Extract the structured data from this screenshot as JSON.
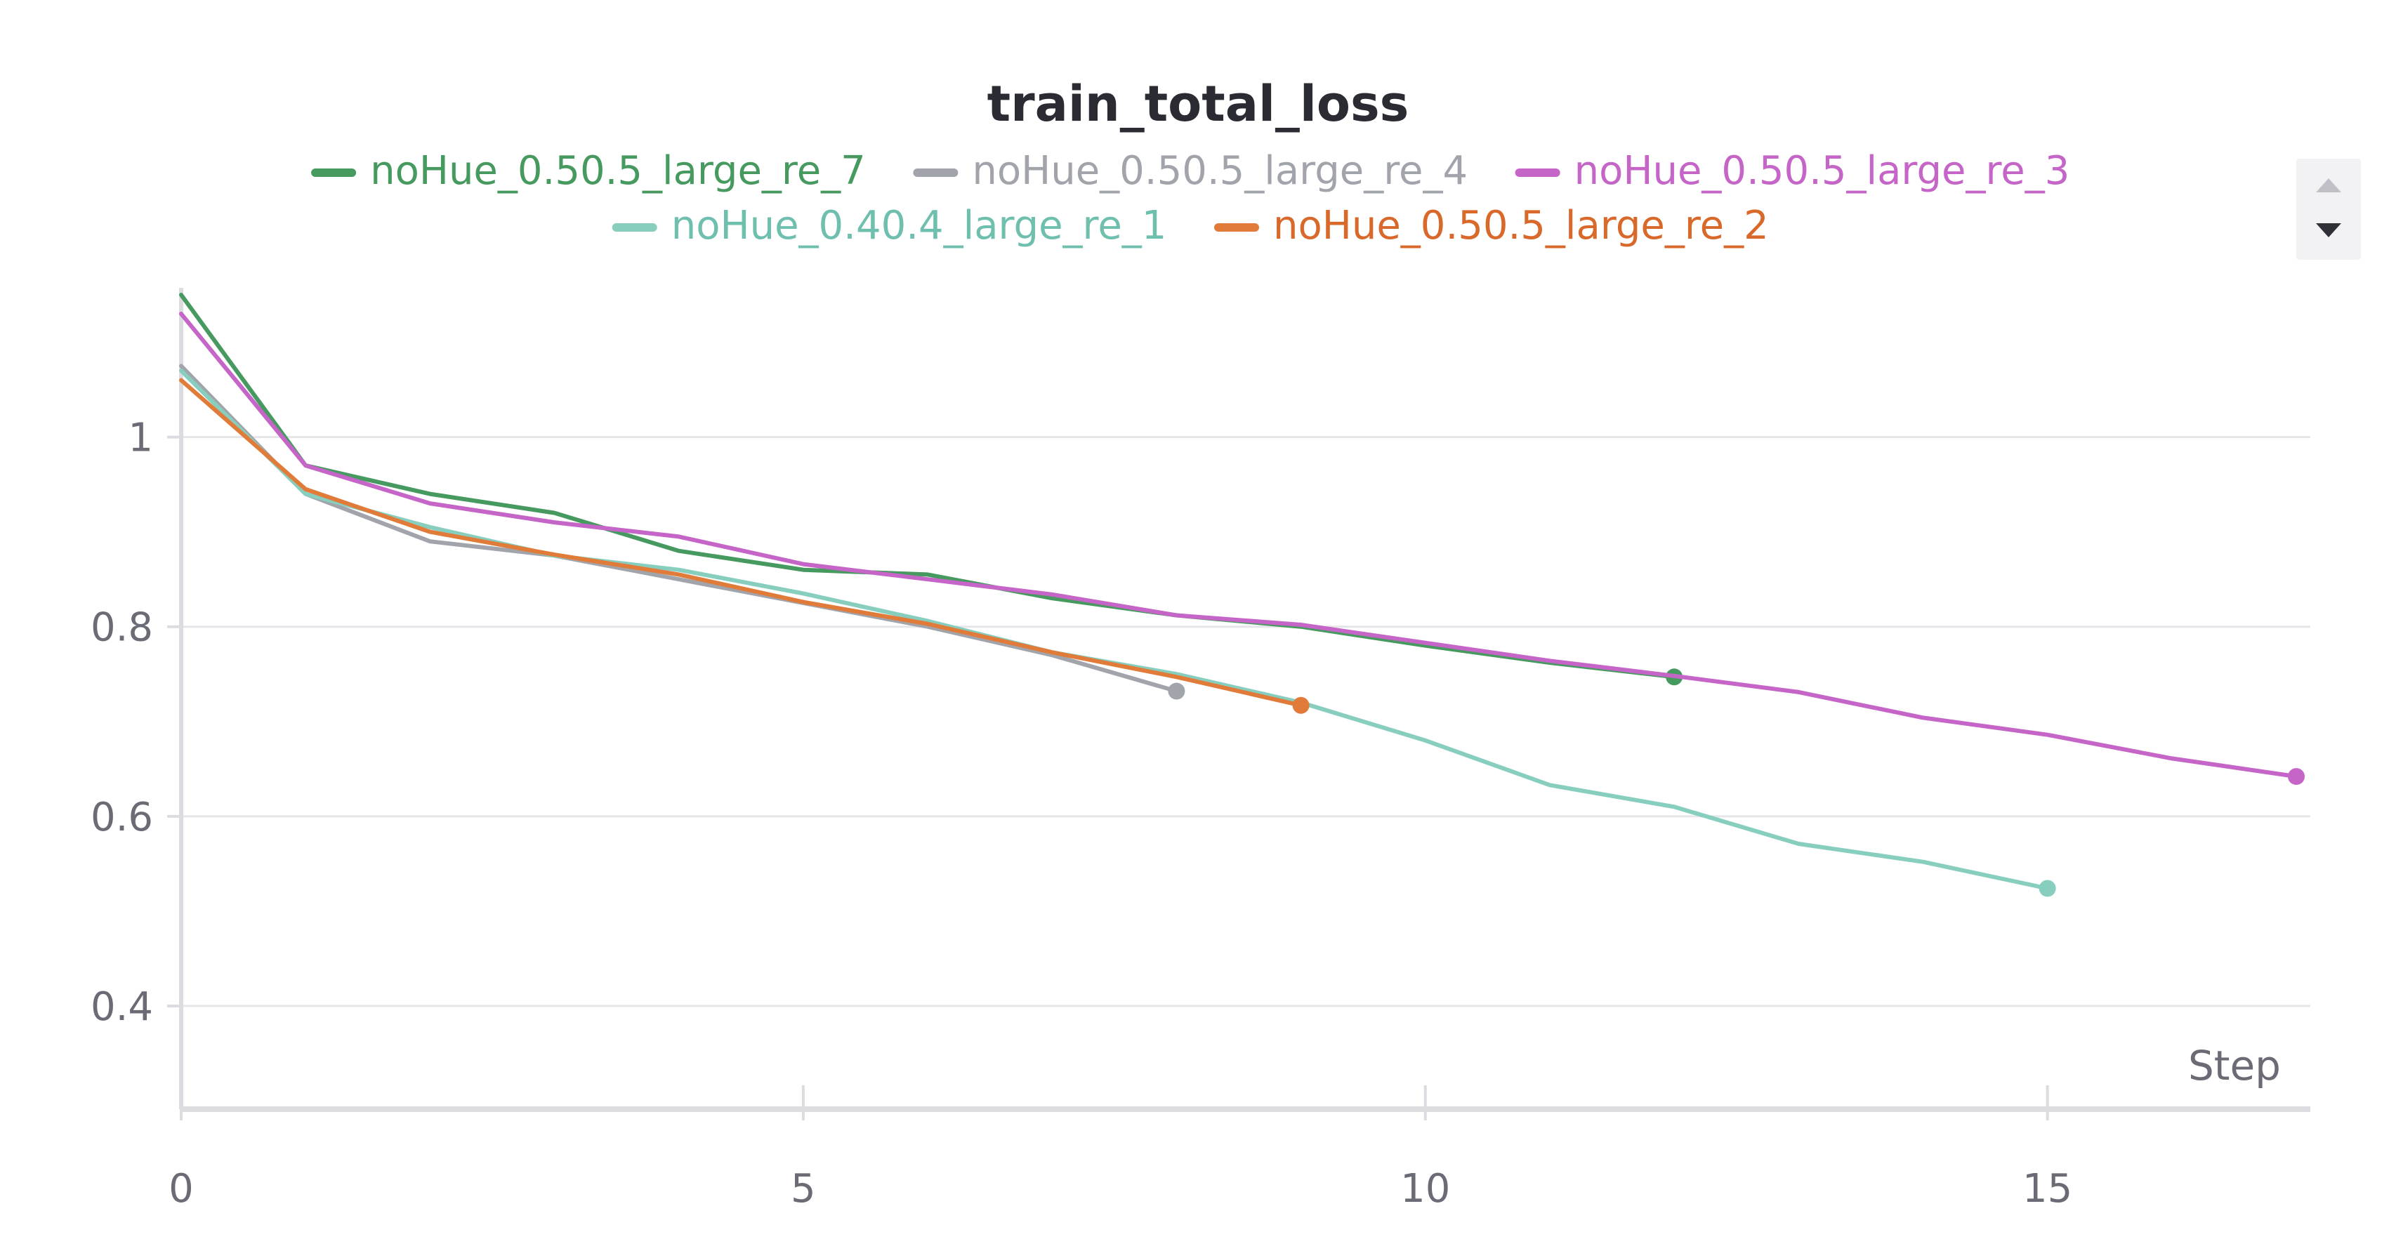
{
  "chart_data": {
    "type": "line",
    "title": "train_total_loss",
    "xlabel": "Step",
    "ylabel": "",
    "xlim": [
      0,
      17
    ],
    "ylim": [
      0.3,
      1.15
    ],
    "x_ticks": [
      0,
      5,
      10,
      15
    ],
    "y_ticks": [
      0.4,
      0.6,
      0.8,
      1
    ],
    "y_tick_labels": [
      "0.4",
      "0.6",
      "0.8",
      "1"
    ],
    "grid": true,
    "legend_position": "top-center",
    "series": [
      {
        "name": "noHue_0.50.5_large_re_7",
        "color": "#479a5f",
        "x": [
          0,
          1,
          2,
          3,
          4,
          5,
          6,
          7,
          8,
          9,
          10,
          11,
          12
        ],
        "y": [
          1.15,
          0.97,
          0.94,
          0.92,
          0.88,
          0.86,
          0.855,
          0.83,
          0.812,
          0.8,
          0.78,
          0.762,
          0.747
        ]
      },
      {
        "name": "noHue_0.50.5_large_re_4",
        "color": "#a2a4ab",
        "x": [
          0,
          1,
          2,
          3,
          4,
          5,
          6,
          7,
          8
        ],
        "y": [
          1.075,
          0.94,
          0.89,
          0.875,
          0.85,
          0.825,
          0.8,
          0.77,
          0.732
        ]
      },
      {
        "name": "noHue_0.50.5_large_re_3",
        "color": "#c565c7",
        "x": [
          0,
          1,
          2,
          3,
          4,
          5,
          6,
          7,
          8,
          9,
          10,
          11,
          12,
          13,
          14,
          15,
          16,
          17
        ],
        "y": [
          1.13,
          0.97,
          0.93,
          0.91,
          0.895,
          0.866,
          0.85,
          0.834,
          0.812,
          0.802,
          0.783,
          0.764,
          0.748,
          0.731,
          0.704,
          0.686,
          0.661,
          0.642
        ]
      },
      {
        "name": "noHue_0.40.4_large_re_1",
        "color": "#87cebf",
        "x": [
          0,
          1,
          2,
          3,
          4,
          5,
          6,
          7,
          8,
          9,
          10,
          11,
          12,
          13,
          14,
          15
        ],
        "y": [
          1.07,
          0.94,
          0.905,
          0.875,
          0.86,
          0.835,
          0.806,
          0.773,
          0.75,
          0.72,
          0.68,
          0.633,
          0.61,
          0.571,
          0.552,
          0.524
        ]
      },
      {
        "name": "noHue_0.50.5_large_re_2",
        "color": "#e07b39",
        "x": [
          0,
          1,
          2,
          3,
          4,
          5,
          6,
          7,
          8,
          9
        ],
        "y": [
          1.06,
          0.945,
          0.9,
          0.876,
          0.855,
          0.826,
          0.803,
          0.773,
          0.747,
          0.717
        ]
      }
    ]
  },
  "legend_colors": {
    "noHue_0.50.5_large_re_7": "#479a5f",
    "noHue_0.50.5_large_re_4": "#a2a4ab",
    "noHue_0.50.5_large_re_3": "#c565c7",
    "noHue_0.40.4_large_re_1": "#6fbfae",
    "noHue_0.50.5_large_re_2": "#d9692a"
  },
  "icons": {
    "scroll_up": "triangle-up-icon",
    "scroll_down": "triangle-down-icon"
  }
}
